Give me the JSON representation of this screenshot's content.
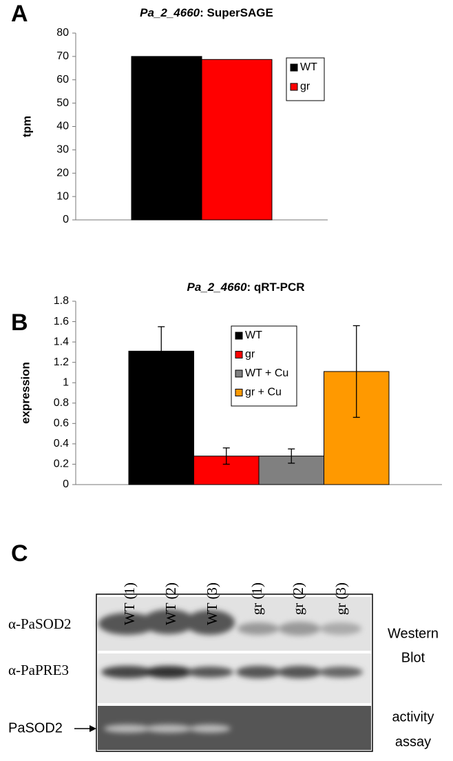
{
  "chart_data": [
    {
      "type": "bar",
      "panel": "A",
      "title_italic": "Pa_2_4660",
      "title": ": SuperSAGE",
      "ylabel": "tpm",
      "categories": [
        null
      ],
      "series": [
        {
          "name": "WT",
          "color": "#000000",
          "values": [
            70
          ]
        },
        {
          "name": "gr",
          "color": "#ff0000",
          "values": [
            68.7
          ]
        }
      ],
      "ylim": [
        0,
        80
      ],
      "yticks": [
        0,
        10,
        20,
        30,
        40,
        50,
        60,
        70,
        80
      ],
      "grid": false,
      "legend": "right"
    },
    {
      "type": "bar",
      "panel": "B",
      "title_italic": "Pa_2_4660",
      "title": ": qRT-PCR",
      "ylabel": "expression",
      "categories": [
        null
      ],
      "series": [
        {
          "name": "WT",
          "color": "#000000",
          "values": [
            1.31
          ],
          "errors": [
            0.24
          ]
        },
        {
          "name": "gr",
          "color": "#ff0000",
          "values": [
            0.28
          ],
          "errors": [
            0.08
          ]
        },
        {
          "name": "WT + Cu",
          "color": "#808080",
          "values": [
            0.28
          ],
          "errors": [
            0.07
          ]
        },
        {
          "name": "gr + Cu",
          "color": "#ff9900",
          "values": [
            1.11
          ],
          "errors": [
            0.45
          ]
        }
      ],
      "ylim": [
        0,
        1.8
      ],
      "yticks": [
        0,
        0.2,
        0.4,
        0.6,
        0.8,
        1,
        1.2,
        1.4,
        1.6,
        1.8
      ],
      "grid": false,
      "legend": "center"
    }
  ],
  "blot": {
    "panel": "C",
    "lanes": [
      "WT (1)",
      "WT (2)",
      "WT (3)",
      "gr (1)",
      "gr (2)",
      "gr (3)"
    ],
    "rows": [
      "α-PaSOD2",
      "α-PaPRE3",
      "PaSOD2"
    ],
    "right_labels": [
      "Western",
      "Blot",
      "activity",
      "assay"
    ]
  }
}
